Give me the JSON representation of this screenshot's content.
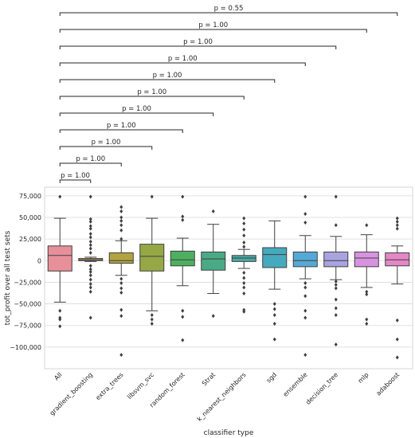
{
  "chart_data": {
    "type": "box",
    "xlabel": "classifier type",
    "ylabel": "tot_profit over all test sets",
    "ylim": [
      -125000,
      85000
    ],
    "yticks": [
      75000,
      50000,
      25000,
      0,
      -25000,
      -50000,
      -75000,
      -100000
    ],
    "ytick_labels": [
      "75,000",
      "50,000",
      "25,000",
      "0",
      "−25,000",
      "−50,000",
      "−75,000",
      "−100,000"
    ],
    "grid": true,
    "categories": [
      "All",
      "gradient_boosting",
      "extra_trees",
      "libsvm_svc",
      "random_forest",
      "Strat",
      "k_nearest_neighbors",
      "sgd",
      "ensemble",
      "decision_tree",
      "mlp",
      "adaboost"
    ],
    "colors": [
      "#e8909a",
      "#c89a5a",
      "#b3a443",
      "#96a846",
      "#4db060",
      "#4aaa86",
      "#4aa9a5",
      "#46aabf",
      "#56a9d6",
      "#a9a3e0",
      "#d893e0",
      "#e488c6"
    ],
    "boxes": [
      {
        "whislo": -48000,
        "q1": -12000,
        "med": 6000,
        "q3": 17000,
        "whishi": 49000,
        "fliers": [
          74000,
          -58000,
          -66000,
          -68000,
          -76000
        ]
      },
      {
        "whislo": -1000,
        "q1": 0,
        "med": 1000,
        "q3": 2500,
        "whishi": 4000,
        "fliers": [
          74000,
          48000,
          45000,
          40000,
          37000,
          31000,
          27000,
          22000,
          18000,
          14000,
          9000,
          -6000,
          -10000,
          -13000,
          -17000,
          -22000,
          -27000,
          -31000,
          -36000,
          -66000
        ]
      },
      {
        "whislo": -17000,
        "q1": -3000,
        "med": 0,
        "q3": 9000,
        "whishi": 23000,
        "fliers": [
          62000,
          57000,
          50000,
          46000,
          41000,
          35000,
          25000,
          -21000,
          -26000,
          -32000,
          -37000,
          -57000,
          -64000,
          -109000
        ]
      },
      {
        "whislo": -58000,
        "q1": -12000,
        "med": 5000,
        "q3": 19000,
        "whishi": 49000,
        "fliers": [
          74000,
          -63000,
          -68000,
          -73000
        ]
      },
      {
        "whislo": -29000,
        "q1": -6000,
        "med": 1000,
        "q3": 11000,
        "whishi": 26000,
        "fliers": [
          74000,
          51000,
          47000,
          -58000,
          -65000,
          -92000
        ]
      },
      {
        "whislo": -38000,
        "q1": -11000,
        "med": 2000,
        "q3": 10000,
        "whishi": 42000,
        "fliers": [
          57000,
          -64000
        ]
      },
      {
        "whislo": -9000,
        "q1": -1000,
        "med": 3000,
        "q3": 6000,
        "whishi": 13000,
        "fliers": [
          49000,
          43000,
          36000,
          29000,
          21000,
          16000,
          -14000,
          -20000,
          -26000,
          -31000,
          -38000,
          -57000,
          -59000
        ]
      },
      {
        "whislo": -33000,
        "q1": -8000,
        "med": 7000,
        "q3": 15000,
        "whishi": 46000,
        "fliers": [
          -50000,
          -56000,
          -63000,
          -73000,
          -91000
        ]
      },
      {
        "whislo": -21000,
        "q1": -7000,
        "med": 0,
        "q3": 10000,
        "whishi": 29000,
        "fliers": [
          74000,
          54000,
          44000,
          -26000,
          -31000,
          -41000,
          -58000,
          -66000,
          -109000
        ]
      },
      {
        "whislo": -22000,
        "q1": -7000,
        "med": 0,
        "q3": 10000,
        "whishi": 28000,
        "fliers": [
          74000,
          41000,
          -24000,
          -28000,
          -32000,
          -45000,
          -55000,
          -63000,
          -97000
        ]
      },
      {
        "whislo": -31000,
        "q1": -7000,
        "med": 3000,
        "q3": 10000,
        "whishi": 30000,
        "fliers": [
          41000,
          -36000,
          -39000,
          -68000,
          -73000
        ]
      },
      {
        "whislo": -27000,
        "q1": -6000,
        "med": 1000,
        "q3": 9000,
        "whishi": 17000,
        "fliers": [
          49000,
          45000,
          41000,
          37000,
          -69000,
          -91000,
          -112000
        ]
      }
    ],
    "annotations": [
      {
        "from": "All",
        "to": "gradient_boosting",
        "label": "p = 1.00"
      },
      {
        "from": "All",
        "to": "extra_trees",
        "label": "p = 1.00"
      },
      {
        "from": "All",
        "to": "libsvm_svc",
        "label": "p = 1.00"
      },
      {
        "from": "All",
        "to": "random_forest",
        "label": "p = 1.00"
      },
      {
        "from": "All",
        "to": "Strat",
        "label": "p = 1.00"
      },
      {
        "from": "All",
        "to": "k_nearest_neighbors",
        "label": "p = 1.00"
      },
      {
        "from": "All",
        "to": "sgd",
        "label": "p = 1.00"
      },
      {
        "from": "All",
        "to": "ensemble",
        "label": "p = 1.00"
      },
      {
        "from": "All",
        "to": "decision_tree",
        "label": "p = 1.00"
      },
      {
        "from": "All",
        "to": "mlp",
        "label": "p = 1.00"
      },
      {
        "from": "All",
        "to": "adaboost",
        "label": "p = 0.55"
      }
    ]
  }
}
